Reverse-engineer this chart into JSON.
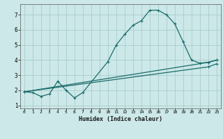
{
  "title": "",
  "xlabel": "Humidex (Indice chaleur)",
  "background_color": "#cce8e8",
  "grid_color": "#aacccc",
  "line_color": "#1a6b6b",
  "xlim": [
    -0.5,
    23.5
  ],
  "ylim": [
    0.8,
    7.7
  ],
  "xticks": [
    0,
    1,
    2,
    3,
    4,
    5,
    6,
    7,
    8,
    9,
    10,
    11,
    12,
    13,
    14,
    15,
    16,
    17,
    18,
    19,
    20,
    21,
    22,
    23
  ],
  "yticks": [
    1,
    2,
    3,
    4,
    5,
    6,
    7
  ],
  "curve1_x": [
    0,
    1,
    2,
    3,
    4,
    5,
    6,
    7,
    10,
    11,
    12,
    13,
    14,
    15,
    16,
    17,
    18,
    19,
    20,
    21,
    22,
    23
  ],
  "curve1_y": [
    1.9,
    1.85,
    1.6,
    1.75,
    2.6,
    2.0,
    1.5,
    1.85,
    3.9,
    5.0,
    5.7,
    6.3,
    6.6,
    7.3,
    7.3,
    7.0,
    6.4,
    5.2,
    4.0,
    3.8,
    3.85,
    4.0
  ],
  "curve2_x": [
    0,
    22,
    23
  ],
  "curve2_y": [
    1.9,
    3.85,
    4.0
  ],
  "curve3_x": [
    0,
    22,
    23
  ],
  "curve3_y": [
    1.9,
    3.55,
    3.75
  ],
  "figsize": [
    3.2,
    2.0
  ],
  "dpi": 100
}
